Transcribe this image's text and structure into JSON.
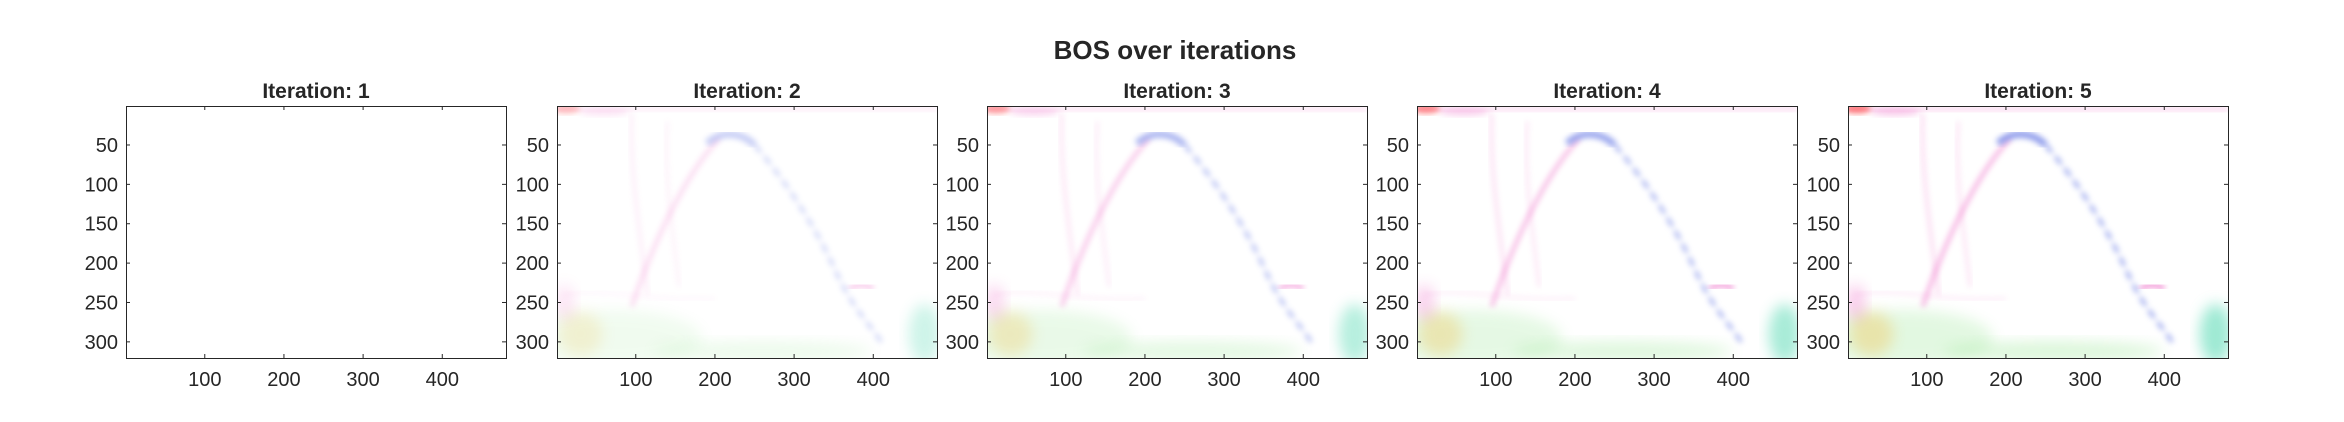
{
  "figure": {
    "title": "BOS over iterations"
  },
  "chart_data": [
    {
      "type": "heatmap",
      "title": "Iteration: 1",
      "iteration": 1,
      "x_ticks": [
        100,
        200,
        300,
        400
      ],
      "y_ticks": [
        50,
        100,
        150,
        200,
        250,
        300
      ],
      "xlim": [
        0.5,
        480.5
      ],
      "ylim": [
        0.5,
        320.5
      ],
      "y_reversed": true,
      "intensity": 0.0
    },
    {
      "type": "heatmap",
      "title": "Iteration: 2",
      "iteration": 2,
      "x_ticks": [
        100,
        200,
        300,
        400
      ],
      "y_ticks": [
        50,
        100,
        150,
        200,
        250,
        300
      ],
      "xlim": [
        0.5,
        480.5
      ],
      "ylim": [
        0.5,
        320.5
      ],
      "y_reversed": true,
      "intensity": 0.5
    },
    {
      "type": "heatmap",
      "title": "Iteration: 3",
      "iteration": 3,
      "x_ticks": [
        100,
        200,
        300,
        400
      ],
      "y_ticks": [
        50,
        100,
        150,
        200,
        250,
        300
      ],
      "xlim": [
        0.5,
        480.5
      ],
      "ylim": [
        0.5,
        320.5
      ],
      "y_reversed": true,
      "intensity": 0.75
    },
    {
      "type": "heatmap",
      "title": "Iteration: 4",
      "iteration": 4,
      "x_ticks": [
        100,
        200,
        300,
        400
      ],
      "y_ticks": [
        50,
        100,
        150,
        200,
        250,
        300
      ],
      "xlim": [
        0.5,
        480.5
      ],
      "ylim": [
        0.5,
        320.5
      ],
      "y_reversed": true,
      "intensity": 0.9
    },
    {
      "type": "heatmap",
      "title": "Iteration: 5",
      "iteration": 5,
      "x_ticks": [
        100,
        200,
        300,
        400
      ],
      "y_ticks": [
        50,
        100,
        150,
        200,
        250,
        300
      ],
      "xlim": [
        0.5,
        480.5
      ],
      "ylim": [
        0.5,
        320.5
      ],
      "y_reversed": true,
      "intensity": 1.0
    }
  ],
  "colors": {
    "axis": "#262626",
    "background": "#ffffff",
    "blue_feature": "#6d7fe6",
    "pink_feature": "#ee6fc8",
    "red_feature": "#ff5050",
    "green_feature": "#7fe07a",
    "yellow_feature": "#f0cc6a",
    "teal_feature": "#4fd8b0"
  }
}
